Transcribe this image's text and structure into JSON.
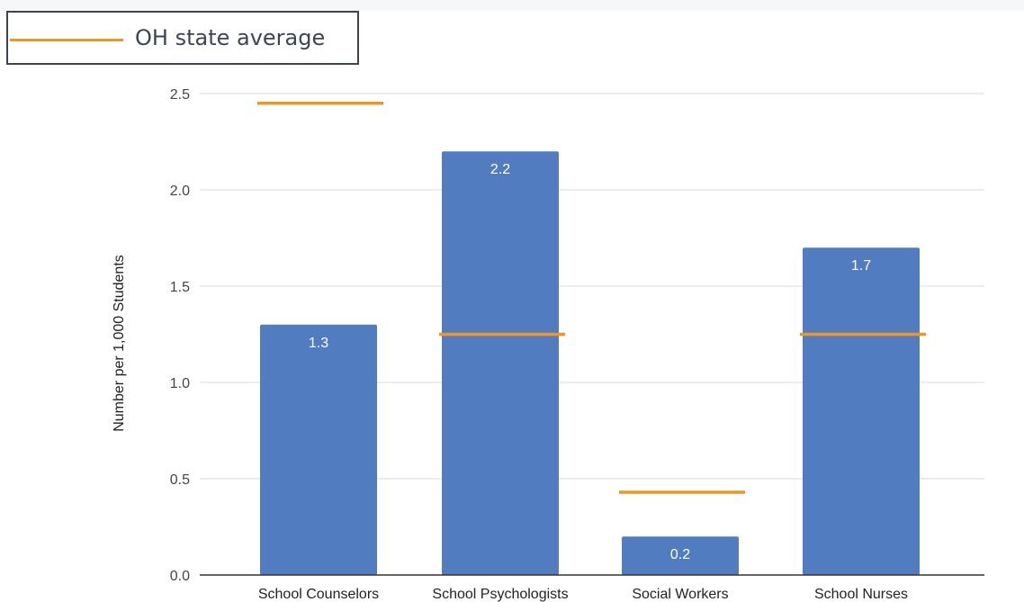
{
  "legend": {
    "label": "OH state average",
    "color": "#f0961e"
  },
  "chart_data": {
    "type": "bar",
    "categories": [
      "School Counselors",
      "School Psychologists",
      "Social Workers",
      "School Nurses"
    ],
    "series": [
      {
        "values": [
          1.3,
          2.2,
          0.2,
          1.7
        ],
        "color": "#517dc0",
        "data_labels": [
          "1.3",
          "2.2",
          "0.2",
          "1.7"
        ]
      },
      {
        "name": "OH state average",
        "render": "line-marker",
        "values": [
          2.45,
          1.25,
          0.43,
          1.25
        ],
        "color": "#f0961e"
      }
    ],
    "title": "",
    "xlabel": "",
    "ylabel": "Number per 1,000 Students",
    "ylim": [
      0,
      2.5
    ],
    "yticks": [
      0.0,
      0.5,
      1.0,
      1.5,
      2.0,
      2.5
    ],
    "ytick_labels": [
      "0.0",
      "0.5",
      "1.0",
      "1.5",
      "2.0",
      "2.5"
    ],
    "grid": true,
    "legend_position": "top-left"
  }
}
